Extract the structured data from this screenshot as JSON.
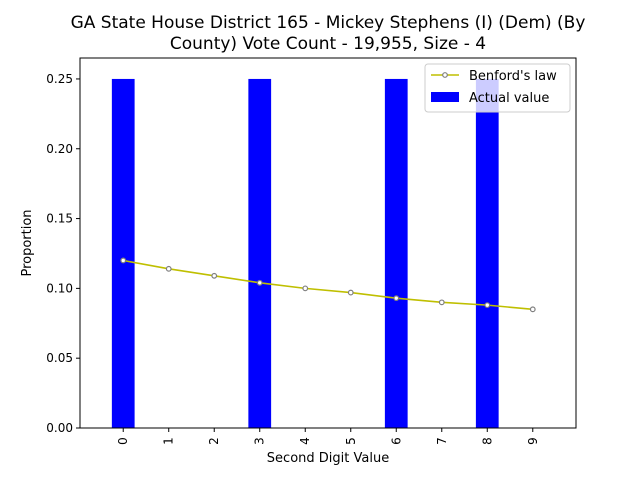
{
  "chart_data": {
    "type": "bar",
    "title_lines": [
      "GA State House District 165 - Mickey Stephens (I) (Dem) (By",
      "County) Vote Count - 19,955, Size - 4"
    ],
    "xlabel": "Second Digit Value",
    "ylabel": "Proportion",
    "categories": [
      "0",
      "1",
      "2",
      "3",
      "4",
      "5",
      "6",
      "7",
      "8",
      "9"
    ],
    "ylim": [
      0,
      0.265
    ],
    "yticks": [
      "0.00",
      "0.05",
      "0.10",
      "0.15",
      "0.20",
      "0.25"
    ],
    "series": [
      {
        "name": "Actual value",
        "kind": "bar",
        "color": "#0000ff",
        "values": [
          0.25,
          0,
          0,
          0.25,
          0,
          0,
          0.25,
          0,
          0.25,
          0
        ]
      },
      {
        "name": "Benford's law",
        "kind": "line",
        "color": "#bfbf00",
        "marker_color": "#7f7f7f",
        "values": [
          0.12,
          0.114,
          0.109,
          0.104,
          0.1,
          0.097,
          0.093,
          0.09,
          0.088,
          0.085
        ]
      }
    ],
    "legend": {
      "placement": "top-right",
      "order": [
        "Benford's law",
        "Actual value"
      ]
    },
    "grid": false
  }
}
